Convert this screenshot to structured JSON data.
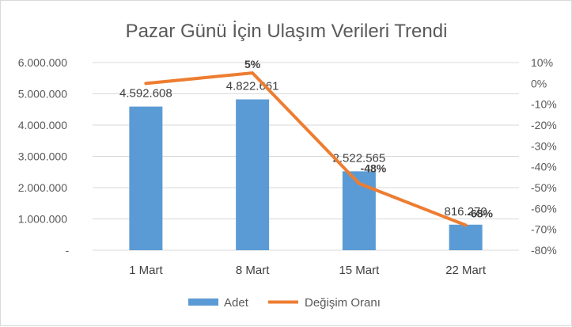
{
  "chart_data": {
    "type": "bar",
    "title": "Pazar Günü İçin Ulaşım Verileri Trendi",
    "categories": [
      "1 Mart",
      "8 Mart",
      "15 Mart",
      "22 Mart"
    ],
    "series": [
      {
        "name": "Adet",
        "type": "bar",
        "axis": "left",
        "values": [
          4592608,
          4822661,
          2522565,
          816270
        ],
        "labels": [
          "4.592.608",
          "4.822.661",
          "2.522.565",
          "816.270"
        ],
        "color": "#5b9bd5"
      },
      {
        "name": "Değişim Oranı",
        "type": "line",
        "axis": "right",
        "values": [
          0,
          5,
          -48,
          -68
        ],
        "labels": [
          "",
          "5%",
          "-48%",
          "-68%"
        ],
        "color": "#ed7d31"
      }
    ],
    "y_left": {
      "ylim": [
        0,
        6000000
      ],
      "ticks": [
        "-",
        "1.000.000",
        "2.000.000",
        "3.000.000",
        "4.000.000",
        "5.000.000",
        "6.000.000"
      ]
    },
    "y_right": {
      "ylim": [
        -80,
        10
      ],
      "ticks": [
        "-80%",
        "-70%",
        "-60%",
        "-50%",
        "-40%",
        "-30%",
        "-20%",
        "-10%",
        "0%",
        "10%"
      ]
    },
    "grid": true,
    "legend_position": "bottom"
  }
}
